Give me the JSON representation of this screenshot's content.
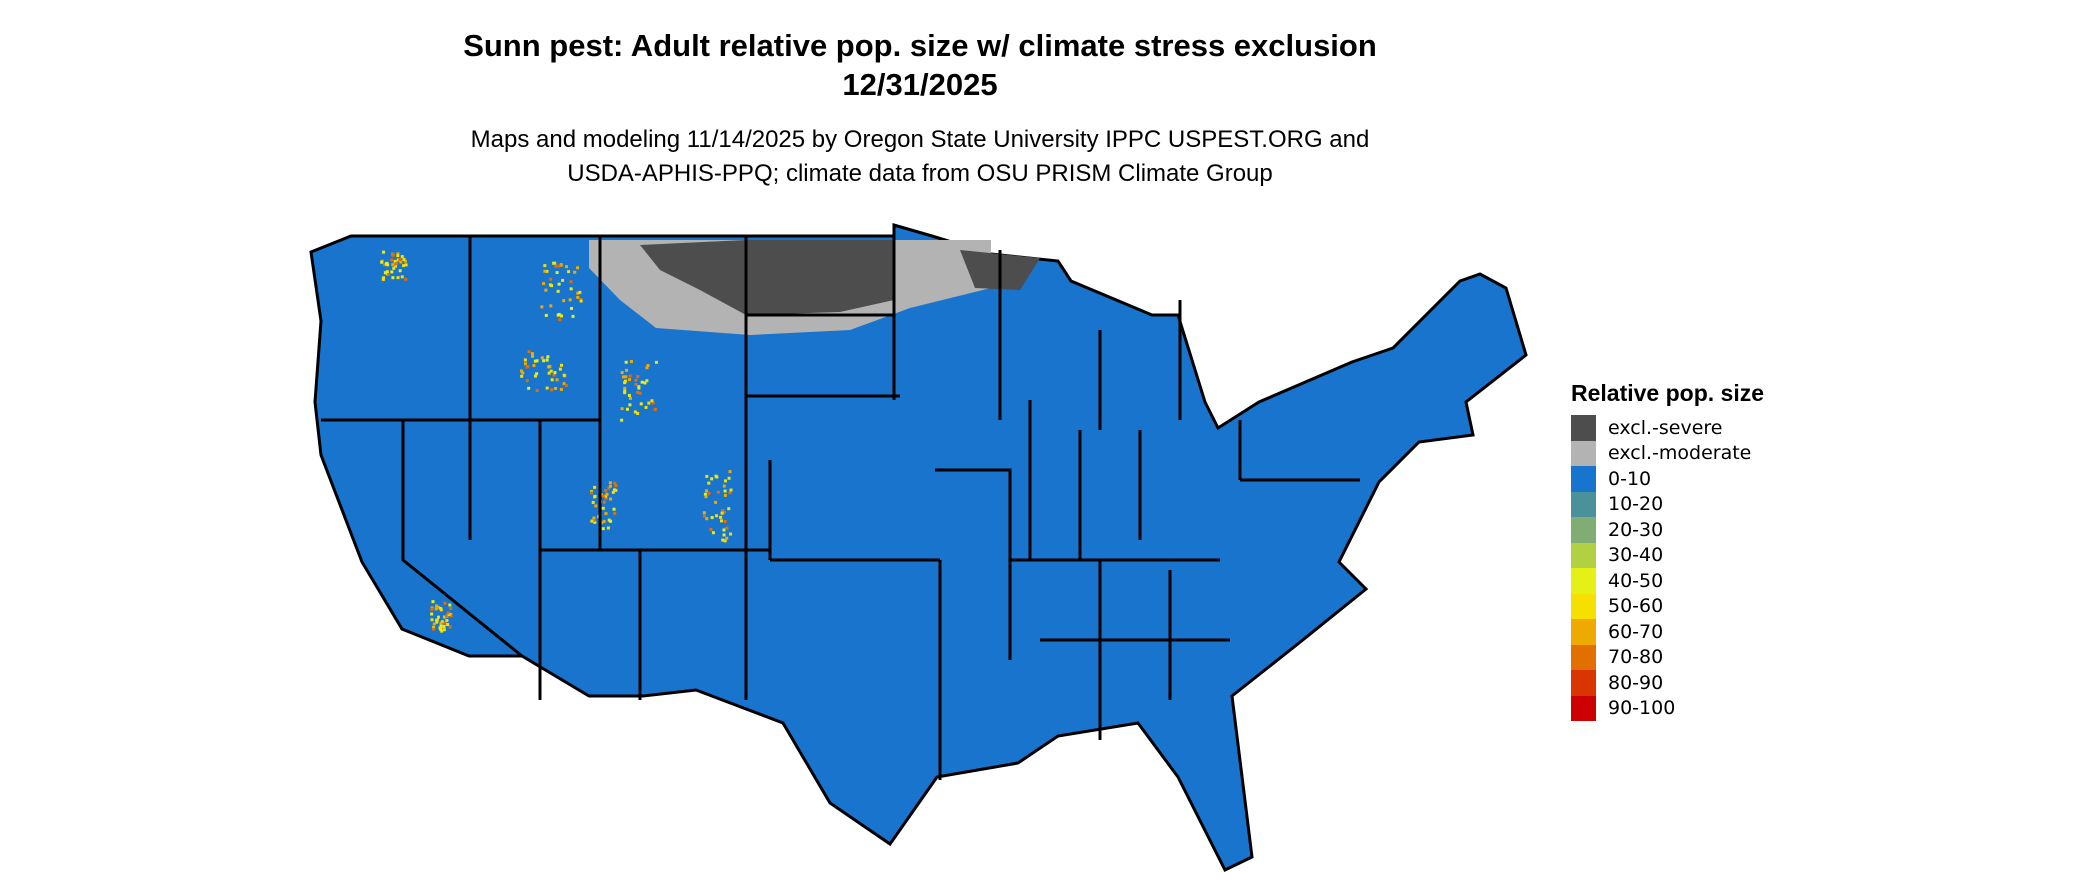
{
  "title": {
    "line1": "Sunn pest: Adult relative pop. size w/ climate stress exclusion",
    "line2": "12/31/2025"
  },
  "subtitle": {
    "line1": "Maps and modeling 11/14/2025 by Oregon State University IPPC USPEST.ORG and",
    "line2": "USDA-APHIS-PPQ; climate data from OSU PRISM Climate Group"
  },
  "map": {
    "region": "Contiguous United States",
    "dominant_class": "0-10",
    "colors": {
      "base": "#1874CD",
      "severe": "#4D4D4D",
      "moderate": "#B3B3B3",
      "border": "#000000"
    }
  },
  "legend": {
    "title": "Relative pop. size",
    "items": [
      {
        "label": "excl.-severe",
        "color": "#4D4D4D"
      },
      {
        "label": "excl.-moderate",
        "color": "#B3B3B3"
      },
      {
        "label": "0-10",
        "color": "#1874CD"
      },
      {
        "label": "10-20",
        "color": "#4A9199"
      },
      {
        "label": "20-30",
        "color": "#7FAD73"
      },
      {
        "label": "30-40",
        "color": "#B2D043"
      },
      {
        "label": "40-50",
        "color": "#E5F016"
      },
      {
        "label": "50-60",
        "color": "#F5E000"
      },
      {
        "label": "60-70",
        "color": "#EEAA00"
      },
      {
        "label": "70-80",
        "color": "#E27000"
      },
      {
        "label": "80-90",
        "color": "#D93500"
      },
      {
        "label": "90-100",
        "color": "#CC0000"
      }
    ]
  }
}
